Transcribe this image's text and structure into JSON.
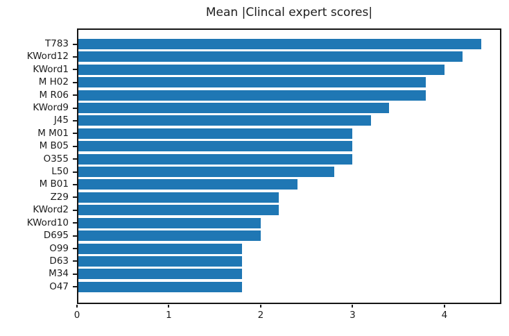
{
  "colors": {
    "bar": "#1f77b4",
    "axis": "#1a1a1a",
    "text": "#1c1c1c",
    "background": "#ffffff"
  },
  "chart_data": {
    "type": "bar",
    "orientation": "horizontal",
    "title": "Mean |Clincal expert scores|",
    "categories": [
      "T783",
      "KWord12",
      "KWord1",
      "M H02",
      "M R06",
      "KWord9",
      "J45",
      "M M01",
      "M B05",
      "O355",
      "L50",
      "M B01",
      "Z29",
      "KWord2",
      "KWord10",
      "D695",
      "O99",
      "D63",
      "M34",
      "O47"
    ],
    "values": [
      4.4,
      4.2,
      4.0,
      3.8,
      3.8,
      3.4,
      3.2,
      3.0,
      3.0,
      3.0,
      2.8,
      2.4,
      2.2,
      2.2,
      2.0,
      2.0,
      1.8,
      1.8,
      1.8,
      1.8
    ],
    "xlabel": "",
    "ylabel": "",
    "xlim": [
      0,
      4.62
    ],
    "xticks": [
      0,
      1,
      2,
      3,
      4
    ],
    "grid": false,
    "legend": null
  }
}
